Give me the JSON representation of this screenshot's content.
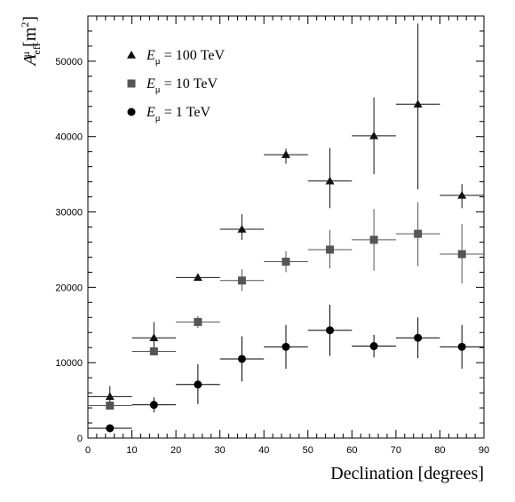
{
  "chart_data": {
    "type": "scatter",
    "xlabel": "Declination [degrees]",
    "ylabel": "A_eff^μ [m^2]",
    "ylabel_parts": {
      "main": "A",
      "sub": "eff",
      "sup": "μ",
      "unit_open": "[m",
      "unit_sup": "2",
      "unit_close": "]"
    },
    "xlim": [
      0,
      90
    ],
    "ylim": [
      0,
      56000
    ],
    "x_ticks": [
      0,
      10,
      20,
      30,
      40,
      50,
      60,
      70,
      80,
      90
    ],
    "y_ticks": [
      0,
      10000,
      20000,
      30000,
      40000,
      50000
    ],
    "grid": false,
    "legend_position": "top-left",
    "series": [
      {
        "name": "E_μ = 100 TeV",
        "legend": {
          "var": "E",
          "sub": "μ",
          "rest": " = 100 TeV"
        },
        "marker": "triangle",
        "color": "#111111",
        "points": [
          {
            "x": 5,
            "xerr": 5,
            "y": 5500,
            "ylo": 4600,
            "yhi": 6900
          },
          {
            "x": 15,
            "xerr": 5,
            "y": 13300,
            "ylo": 11900,
            "yhi": 15400
          },
          {
            "x": 25,
            "xerr": 5,
            "y": 21300,
            "ylo": 20900,
            "yhi": 21800
          },
          {
            "x": 35,
            "xerr": 5,
            "y": 27700,
            "ylo": 26300,
            "yhi": 29700
          },
          {
            "x": 45,
            "xerr": 5,
            "y": 37600,
            "ylo": 36400,
            "yhi": 38400
          },
          {
            "x": 55,
            "xerr": 5,
            "y": 34100,
            "ylo": 30500,
            "yhi": 38500
          },
          {
            "x": 65,
            "xerr": 5,
            "y": 40100,
            "ylo": 35000,
            "yhi": 45200
          },
          {
            "x": 75,
            "xerr": 5,
            "y": 44300,
            "ylo": 33000,
            "yhi": 55000
          },
          {
            "x": 85,
            "xerr": 5,
            "y": 32200,
            "ylo": 30500,
            "yhi": 33700
          }
        ]
      },
      {
        "name": "E_μ = 10 TeV",
        "legend": {
          "var": "E",
          "sub": "μ",
          "rest": " = 10 TeV"
        },
        "marker": "square",
        "color": "#555555",
        "points": [
          {
            "x": 5,
            "xerr": 5,
            "y": 4300,
            "ylo": 3800,
            "yhi": 4700
          },
          {
            "x": 15,
            "xerr": 5,
            "y": 11500,
            "ylo": 11000,
            "yhi": 12000
          },
          {
            "x": 25,
            "xerr": 5,
            "y": 15400,
            "ylo": 14600,
            "yhi": 16200
          },
          {
            "x": 35,
            "xerr": 5,
            "y": 20900,
            "ylo": 19500,
            "yhi": 22400
          },
          {
            "x": 45,
            "xerr": 5,
            "y": 23400,
            "ylo": 22000,
            "yhi": 24800
          },
          {
            "x": 55,
            "xerr": 5,
            "y": 25000,
            "ylo": 22500,
            "yhi": 27600
          },
          {
            "x": 65,
            "xerr": 5,
            "y": 26300,
            "ylo": 22200,
            "yhi": 30400
          },
          {
            "x": 75,
            "xerr": 5,
            "y": 27100,
            "ylo": 22800,
            "yhi": 31300
          },
          {
            "x": 85,
            "xerr": 5,
            "y": 24400,
            "ylo": 20500,
            "yhi": 28400
          }
        ]
      },
      {
        "name": "E_μ = 1 TeV",
        "legend": {
          "var": "E",
          "sub": "μ",
          "rest": " = 1 TeV"
        },
        "marker": "circle",
        "color": "#000000",
        "points": [
          {
            "x": 5,
            "xerr": 5,
            "y": 1300,
            "ylo": 1100,
            "yhi": 1500
          },
          {
            "x": 15,
            "xerr": 5,
            "y": 4400,
            "ylo": 3400,
            "yhi": 5400
          },
          {
            "x": 25,
            "xerr": 5,
            "y": 7100,
            "ylo": 4500,
            "yhi": 9800
          },
          {
            "x": 35,
            "xerr": 5,
            "y": 10500,
            "ylo": 7500,
            "yhi": 13500
          },
          {
            "x": 45,
            "xerr": 5,
            "y": 12100,
            "ylo": 9200,
            "yhi": 15000
          },
          {
            "x": 55,
            "xerr": 5,
            "y": 14300,
            "ylo": 10900,
            "yhi": 17700
          },
          {
            "x": 65,
            "xerr": 5,
            "y": 12200,
            "ylo": 10700,
            "yhi": 13700
          },
          {
            "x": 75,
            "xerr": 5,
            "y": 13300,
            "ylo": 10600,
            "yhi": 16000
          },
          {
            "x": 85,
            "xerr": 5,
            "y": 12100,
            "ylo": 9200,
            "yhi": 15000
          }
        ]
      }
    ]
  }
}
